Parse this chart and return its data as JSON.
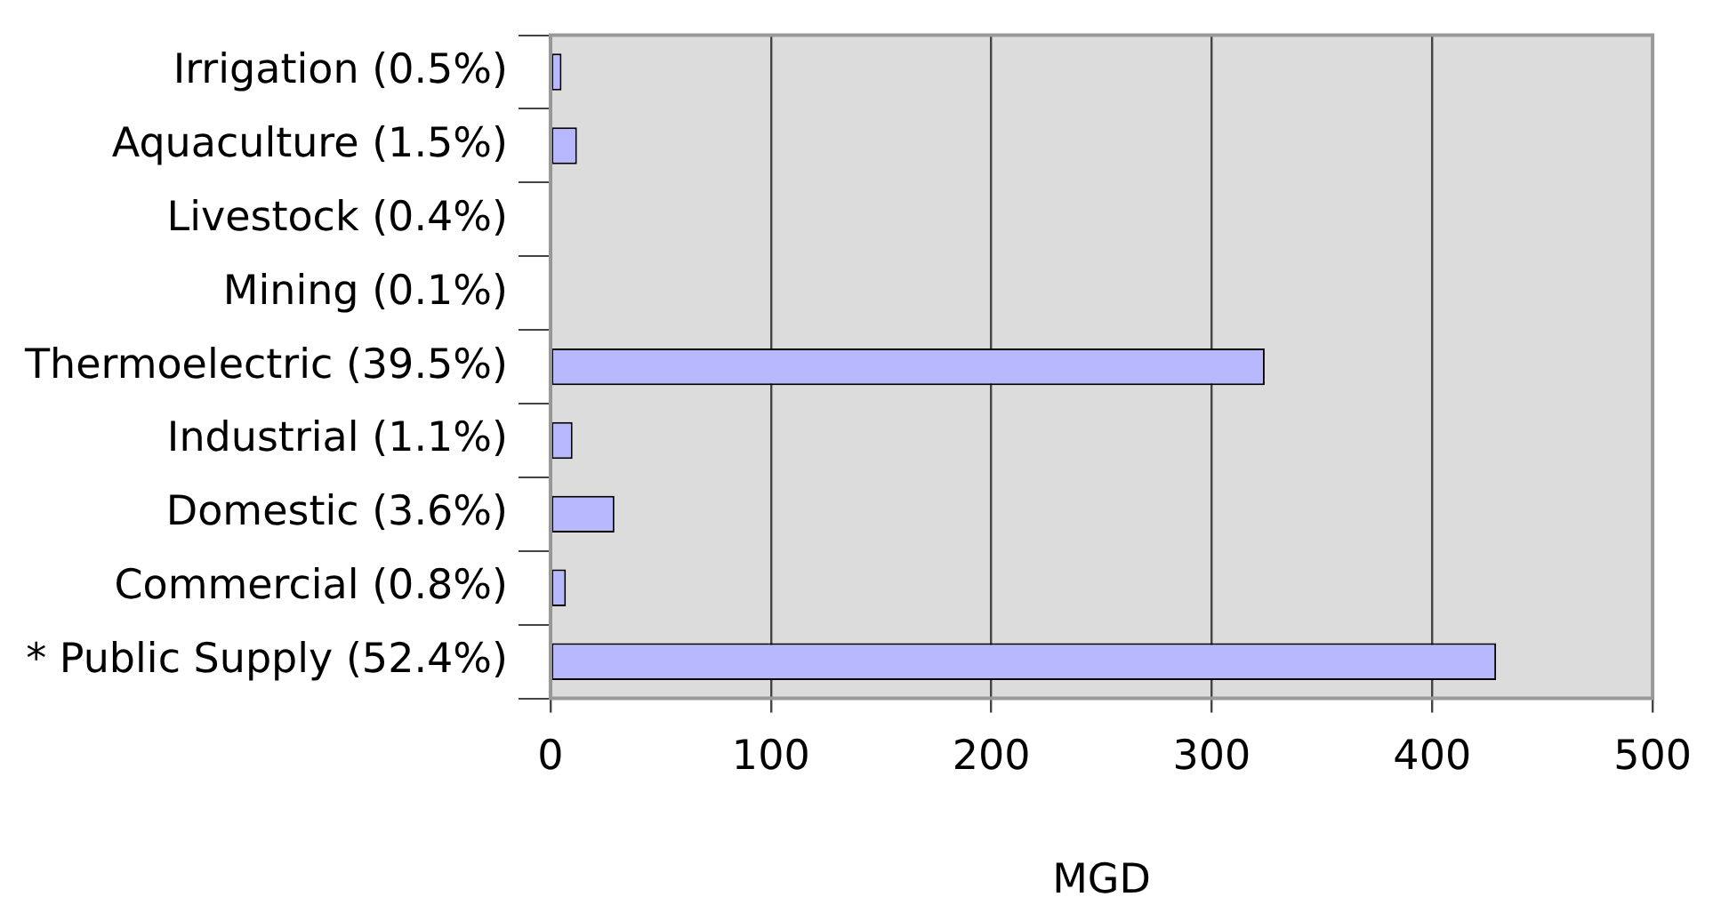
{
  "chart_data": {
    "type": "bar",
    "orientation": "horizontal",
    "xlabel": "MGD",
    "categories": [
      "Irrigation (0.5%)",
      "Aquaculture (1.5%)",
      "Livestock (0.4%)",
      "Mining (0.1%)",
      "Thermoelectric (39.5%)",
      "Industrial (1.1%)",
      "Domestic (3.6%)",
      "Commercial (0.8%)",
      "* Public Supply (52.4%)"
    ],
    "values": [
      5,
      12,
      null,
      null,
      324,
      10,
      29,
      7,
      429
    ],
    "color": "#b8b8ff",
    "xlim": [
      0,
      500
    ],
    "xticks": [
      0,
      100,
      200,
      300,
      400,
      500
    ],
    "grid": "x",
    "legend": false
  }
}
